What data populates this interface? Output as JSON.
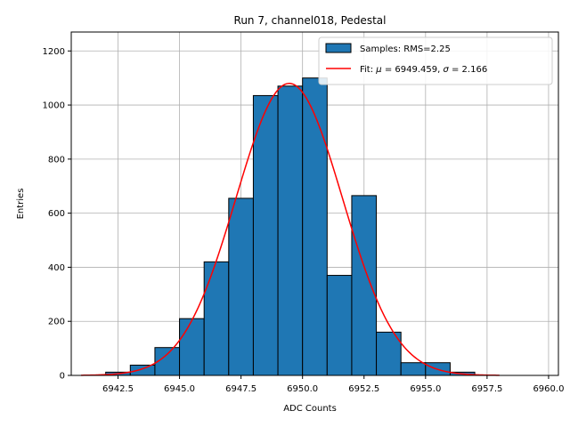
{
  "chart_data": {
    "type": "histogram",
    "title": "Run 7, channel018, Pedestal",
    "xlabel": "ADC Counts",
    "ylabel": "Entries",
    "xlim": [
      6940.6,
      6960.4
    ],
    "ylim": [
      0,
      1270
    ],
    "grid": true,
    "legend_position": "top-right",
    "xticks": [
      6942.5,
      6945.0,
      6947.5,
      6950.0,
      6952.5,
      6955.0,
      6957.5,
      6960.0
    ],
    "xtick_labels": [
      "6942.5",
      "6945.0",
      "6947.5",
      "6950.0",
      "6952.5",
      "6955.0",
      "6957.5",
      "6960.0"
    ],
    "yticks": [
      0,
      200,
      400,
      600,
      800,
      1000,
      1200
    ],
    "ytick_labels": [
      "0",
      "200",
      "400",
      "600",
      "800",
      "1000",
      "1200"
    ],
    "bins": [
      {
        "start": 6942.0,
        "end": 6943.0,
        "count": 12
      },
      {
        "start": 6943.0,
        "end": 6944.0,
        "count": 38
      },
      {
        "start": 6944.0,
        "end": 6945.0,
        "count": 103
      },
      {
        "start": 6945.0,
        "end": 6946.0,
        "count": 210
      },
      {
        "start": 6946.0,
        "end": 6947.0,
        "count": 420
      },
      {
        "start": 6947.0,
        "end": 6948.0,
        "count": 655
      },
      {
        "start": 6948.0,
        "end": 6949.0,
        "count": 1035
      },
      {
        "start": 6949.0,
        "end": 6950.0,
        "count": 1070
      },
      {
        "start": 6950.0,
        "end": 6951.0,
        "count": 1100
      },
      {
        "start": 6951.0,
        "end": 6952.0,
        "count": 370
      },
      {
        "start": 6952.0,
        "end": 6953.0,
        "count": 665
      },
      {
        "start": 6953.0,
        "end": 6954.0,
        "count": 160
      },
      {
        "start": 6954.0,
        "end": 6955.0,
        "count": 47
      },
      {
        "start": 6955.0,
        "end": 6956.0,
        "count": 47
      },
      {
        "start": 6956.0,
        "end": 6957.0,
        "count": 12
      }
    ],
    "fit": {
      "name": "Fit",
      "mu": 6949.459,
      "sigma": 2.166,
      "amplitude": 1080,
      "x_range": [
        6941.0,
        6958.0
      ]
    },
    "series": [
      {
        "name": "Samples",
        "kind": "histogram",
        "color": "#1f77b4",
        "edge_color": "#000000"
      },
      {
        "name": "Fit",
        "kind": "line",
        "color": "#ff0000"
      }
    ],
    "legend": [
      {
        "label_prefix": "Samples: RMS=2.25",
        "marker": "box"
      },
      {
        "label_prefix": "Fit: ",
        "mu_symbol": "μ",
        "mu_text": " = 6949.459, ",
        "sigma_symbol": "σ",
        "sigma_text": " = 2.166",
        "marker": "line"
      }
    ]
  }
}
